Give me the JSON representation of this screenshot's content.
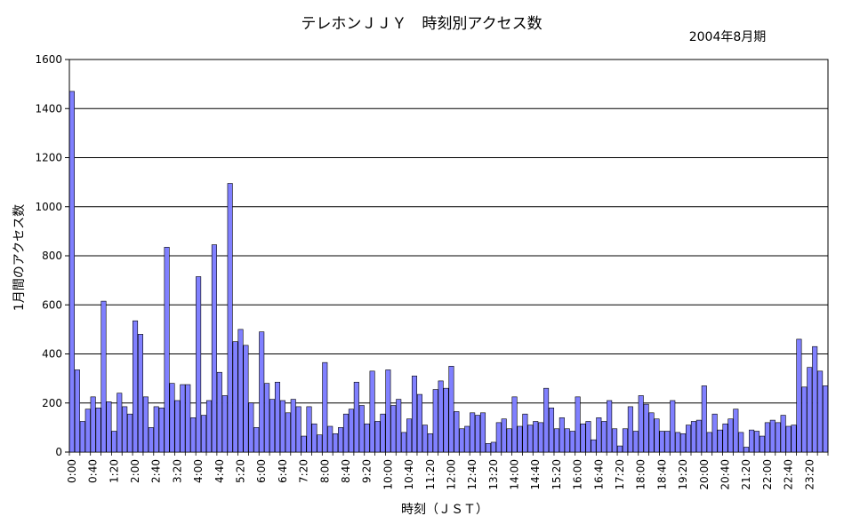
{
  "chart_data": {
    "type": "bar",
    "title": "テレホンＪＪＹ　時刻別アクセス数",
    "subtitle": "2004年8月期",
    "xlabel": "時刻（ＪＳＴ）",
    "ylabel": "1月間のアクセス数",
    "ylim": [
      0,
      1600
    ],
    "yticks": [
      0,
      200,
      400,
      600,
      800,
      1000,
      1200,
      1400,
      1600
    ],
    "grid": true,
    "bar_color": "#8080ff",
    "categories": [
      "0:00",
      "0:10",
      "0:20",
      "0:30",
      "0:40",
      "0:50",
      "1:00",
      "1:10",
      "1:20",
      "1:30",
      "1:40",
      "1:50",
      "2:00",
      "2:10",
      "2:20",
      "2:30",
      "2:40",
      "2:50",
      "3:00",
      "3:10",
      "3:20",
      "3:30",
      "3:40",
      "3:50",
      "4:00",
      "4:10",
      "4:20",
      "4:30",
      "4:40",
      "4:50",
      "5:00",
      "5:10",
      "5:20",
      "5:30",
      "5:40",
      "5:50",
      "6:00",
      "6:10",
      "6:20",
      "6:30",
      "6:40",
      "6:50",
      "7:00",
      "7:10",
      "7:20",
      "7:30",
      "7:40",
      "7:50",
      "8:00",
      "8:10",
      "8:20",
      "8:30",
      "8:40",
      "8:50",
      "9:00",
      "9:10",
      "9:20",
      "9:30",
      "9:40",
      "9:50",
      "10:00",
      "10:10",
      "10:20",
      "10:30",
      "10:40",
      "10:50",
      "11:00",
      "11:10",
      "11:20",
      "11:30",
      "11:40",
      "11:50",
      "12:00",
      "12:10",
      "12:20",
      "12:30",
      "12:40",
      "12:50",
      "13:00",
      "13:10",
      "13:20",
      "13:30",
      "13:40",
      "13:50",
      "14:00",
      "14:10",
      "14:20",
      "14:30",
      "14:40",
      "14:50",
      "15:00",
      "15:10",
      "15:20",
      "15:30",
      "15:40",
      "15:50",
      "16:00",
      "16:10",
      "16:20",
      "16:30",
      "16:40",
      "16:50",
      "17:00",
      "17:10",
      "17:20",
      "17:30",
      "17:40",
      "17:50",
      "18:00",
      "18:10",
      "18:20",
      "18:30",
      "18:40",
      "18:50",
      "19:00",
      "19:10",
      "19:20",
      "19:30",
      "19:40",
      "19:50",
      "20:00",
      "20:10",
      "20:20",
      "20:30",
      "20:40",
      "20:50",
      "21:00",
      "21:10",
      "21:20",
      "21:30",
      "21:40",
      "21:50",
      "22:00",
      "22:10",
      "22:20",
      "22:30",
      "22:40",
      "22:50",
      "23:00",
      "23:10",
      "23:20",
      "23:30",
      "23:40",
      "23:50"
    ],
    "tick_labels": [
      "0:00",
      "0:40",
      "1:20",
      "2:00",
      "2:40",
      "3:20",
      "4:00",
      "4:40",
      "5:20",
      "6:00",
      "6:40",
      "7:20",
      "8:00",
      "8:40",
      "9:20",
      "10:00",
      "10:40",
      "11:20",
      "12:00",
      "12:40",
      "13:20",
      "14:00",
      "14:40",
      "15:20",
      "16:00",
      "16:40",
      "17:20",
      "18:00",
      "18:40",
      "19:20",
      "20:00",
      "20:40",
      "21:20",
      "22:00",
      "22:40",
      "23:20"
    ],
    "values": [
      1470,
      335,
      125,
      175,
      225,
      180,
      615,
      205,
      85,
      240,
      185,
      155,
      535,
      480,
      225,
      100,
      185,
      180,
      835,
      280,
      210,
      275,
      275,
      140,
      715,
      150,
      210,
      845,
      325,
      230,
      1095,
      450,
      500,
      435,
      200,
      100,
      490,
      280,
      215,
      285,
      210,
      160,
      215,
      185,
      65,
      185,
      115,
      70,
      365,
      105,
      75,
      100,
      155,
      175,
      285,
      190,
      115,
      330,
      125,
      155,
      335,
      190,
      215,
      80,
      135,
      310,
      235,
      110,
      75,
      255,
      290,
      260,
      350,
      165,
      95,
      105,
      160,
      150,
      160,
      35,
      40,
      120,
      135,
      95,
      225,
      105,
      155,
      110,
      125,
      120,
      260,
      180,
      95,
      140,
      95,
      85,
      225,
      115,
      125,
      50,
      140,
      125,
      210,
      95,
      25,
      95,
      185,
      85,
      230,
      195,
      160,
      135,
      85,
      85,
      210,
      80,
      75,
      110,
      125,
      130,
      270,
      80,
      155,
      90,
      115,
      135,
      175,
      80,
      20,
      90,
      85,
      65,
      120,
      130,
      120,
      150,
      105,
      110,
      460,
      265,
      345,
      430,
      330,
      270
    ]
  }
}
